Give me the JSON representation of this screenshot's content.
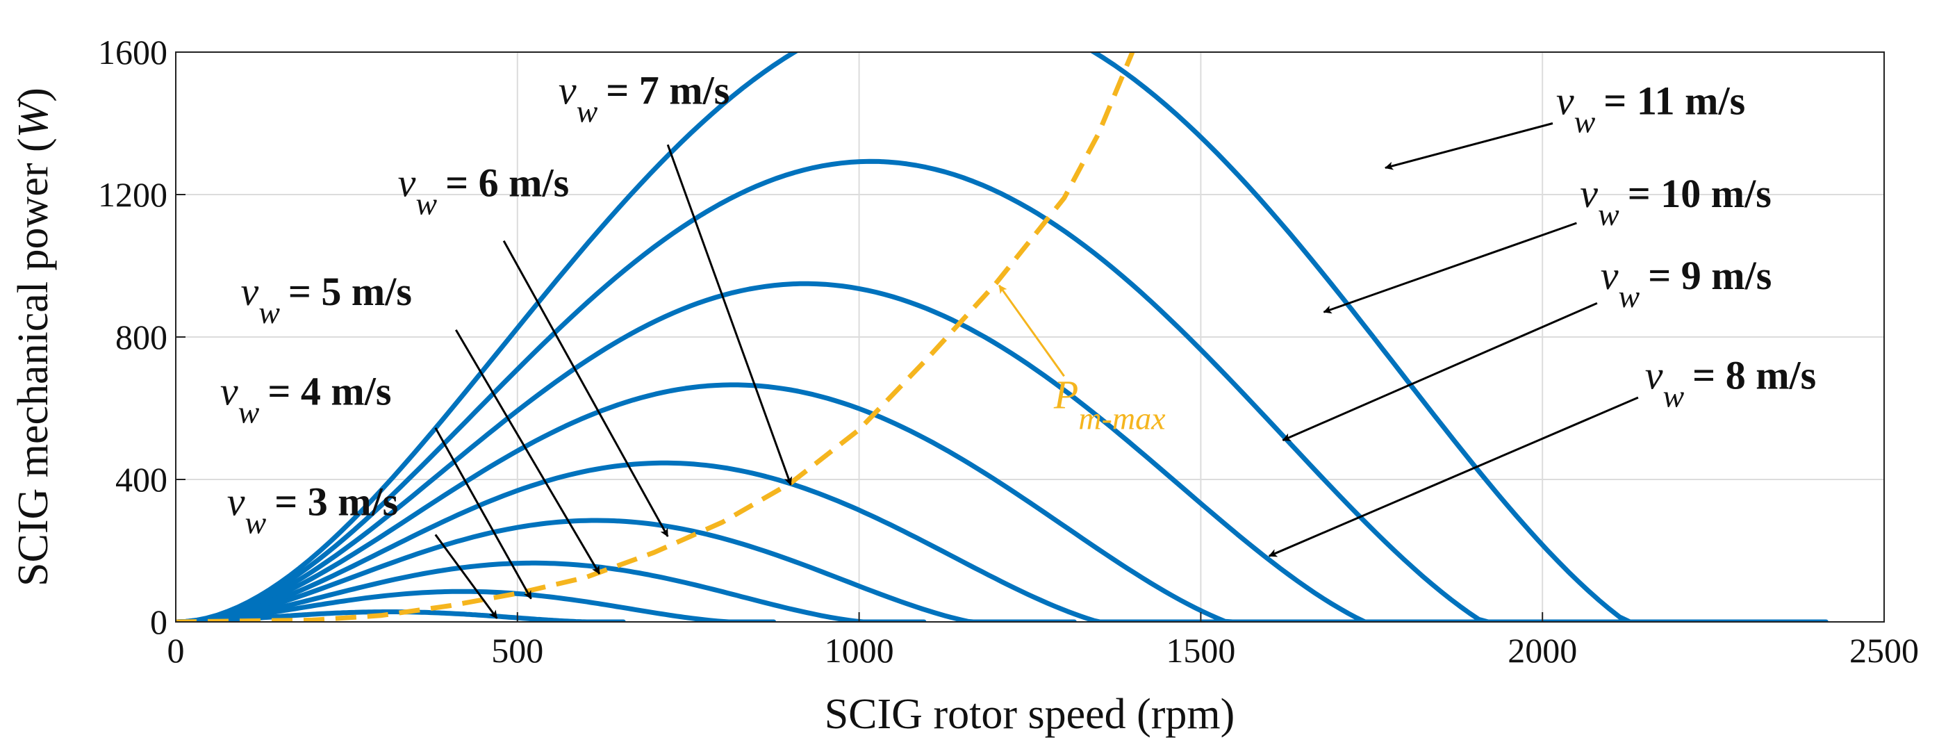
{
  "chart_data": {
    "type": "line",
    "title": "",
    "xlabel": "SCIG rotor speed (rpm)",
    "ylabel_prefix": "SCIG mechanical power (",
    "ylabel_unit": "W",
    "ylabel_suffix": ")",
    "xlim": [
      0,
      2500
    ],
    "ylim": [
      0,
      1600
    ],
    "xticks": [
      0,
      500,
      1000,
      1500,
      2000,
      2500
    ],
    "yticks": [
      0,
      400,
      800,
      1200,
      1600
    ],
    "grid": true,
    "colors": {
      "curves": "#0072BD",
      "pmax": "#F5B51E",
      "arrows": "#000000",
      "grid": "#dcdcdc"
    },
    "curve_model": "P(n) = Ppeak*(n/N)^2*(3-2*(n/N))*(N0-n)/(N0-N), peak at N, zero at N0",
    "series": [
      {
        "name": "v_w = 3 m/s",
        "wind_speed": 3,
        "peak_speed": 400,
        "peak_power": 24,
        "zero_speed": 655
      },
      {
        "name": "v_w = 4 m/s",
        "wind_speed": 4,
        "peak_speed": 540,
        "peak_power": 72,
        "zero_speed": 875
      },
      {
        "name": "v_w = 5 m/s",
        "wind_speed": 5,
        "peak_speed": 670,
        "peak_power": 140,
        "zero_speed": 1095
      },
      {
        "name": "v_w = 6 m/s",
        "wind_speed": 6,
        "peak_speed": 775,
        "peak_power": 247,
        "zero_speed": 1315
      },
      {
        "name": "v_w = 7 m/s",
        "wind_speed": 7,
        "peak_speed": 900,
        "peak_power": 388,
        "zero_speed": 1535
      },
      {
        "name": "v_w = 8 m/s",
        "wind_speed": 8,
        "peak_speed": 1025,
        "peak_power": 580,
        "zero_speed": 1755
      },
      {
        "name": "v_w = 9 m/s",
        "wind_speed": 9,
        "peak_speed": 1160,
        "peak_power": 825,
        "zero_speed": 1975
      },
      {
        "name": "v_w = 10 m/s",
        "wind_speed": 10,
        "peak_speed": 1275,
        "peak_power": 1130,
        "zero_speed": 2195
      },
      {
        "name": "v_w = 11 m/s",
        "wind_speed": 11,
        "peak_speed": 1415,
        "peak_power": 1505,
        "zero_speed": 2415
      }
    ],
    "pmax_curve": {
      "label_main": "P",
      "label_sub": "m-max",
      "points": [
        [
          0,
          0
        ],
        [
          200,
          5
        ],
        [
          300,
          18
        ],
        [
          400,
          45
        ],
        [
          500,
          80
        ],
        [
          600,
          125
        ],
        [
          700,
          195
        ],
        [
          800,
          280
        ],
        [
          900,
          390
        ],
        [
          1000,
          540
        ],
        [
          1100,
          740
        ],
        [
          1200,
          950
        ],
        [
          1300,
          1190
        ],
        [
          1350,
          1370
        ],
        [
          1400,
          1600
        ]
      ]
    },
    "annotations": [
      {
        "sym": "v",
        "sub": "w",
        "text": "= 3 m/s",
        "label_at": [
          75,
          300
        ],
        "arrow_from": [
          380,
          245
        ],
        "arrow_to": [
          470,
          10
        ]
      },
      {
        "sym": "v",
        "sub": "w",
        "text": "= 4 m/s",
        "label_at": [
          65,
          610
        ],
        "arrow_from": [
          380,
          545
        ],
        "arrow_to": [
          520,
          65
        ]
      },
      {
        "sym": "v",
        "sub": "w",
        "text": "= 5 m/s",
        "label_at": [
          95,
          890
        ],
        "arrow_from": [
          410,
          820
        ],
        "arrow_to": [
          620,
          135
        ]
      },
      {
        "sym": "v",
        "sub": "w",
        "text": "= 6 m/s",
        "label_at": [
          325,
          1195
        ],
        "arrow_from": [
          480,
          1070
        ],
        "arrow_to": [
          720,
          240
        ]
      },
      {
        "sym": "v",
        "sub": "w",
        "text": "= 7 m/s",
        "label_at": [
          560,
          1455
        ],
        "arrow_from": [
          720,
          1340
        ],
        "arrow_to": [
          900,
          385
        ]
      },
      {
        "sym": "v",
        "sub": "w",
        "text": "= 8 m/s",
        "label_at": [
          2150,
          655
        ],
        "arrow_from": [
          2140,
          630
        ],
        "arrow_to": [
          1600,
          185
        ]
      },
      {
        "sym": "v",
        "sub": "w",
        "text": "= 9 m/s",
        "label_at": [
          2085,
          935
        ],
        "arrow_from": [
          2080,
          895
        ],
        "arrow_to": [
          1620,
          510
        ]
      },
      {
        "sym": "v",
        "sub": "w",
        "text": "= 10 m/s",
        "label_at": [
          2055,
          1165
        ],
        "arrow_from": [
          2050,
          1120
        ],
        "arrow_to": [
          1680,
          870
        ]
      },
      {
        "sym": "v",
        "sub": "w",
        "text": "= 11 m/s",
        "label_at": [
          2020,
          1425
        ],
        "arrow_from": [
          2015,
          1400
        ],
        "arrow_to": [
          1770,
          1275
        ]
      }
    ],
    "pmax_annotation": {
      "label_at": [
        1285,
        600
      ],
      "arrow_from": [
        1300,
        690
      ],
      "arrow_to": [
        1205,
        945
      ]
    }
  }
}
